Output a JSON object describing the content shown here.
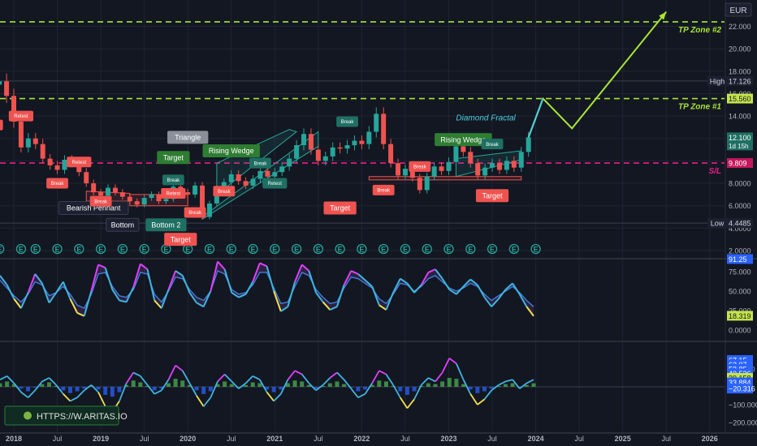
{
  "currency": "EUR",
  "branding": {
    "watermark": "HTTPS://W.ARITAS.IO"
  },
  "colors": {
    "background": "#131722",
    "grid": "#1f2433",
    "axis_text": "#b2b5be",
    "candle_up": "#26a69a",
    "candle_down": "#ef5350",
    "tp_line": "#a8e634",
    "sl_line": "#e91e8c",
    "projection": "#a8e634",
    "fractal": "#4dd0e1",
    "badge_blue": "#2962ff",
    "badge_teal": "#1f6f63",
    "badge_red": "#ef5350",
    "badge_green": "#2e7d32",
    "badge_dark": "#1c2030",
    "badge_yellow": "#c5e34b"
  },
  "chart_data": {
    "type": "candlestick",
    "price_axis": {
      "ticks": [
        2,
        4,
        6,
        8,
        10,
        12,
        14,
        16,
        18,
        20,
        22
      ],
      "tick_labels": [
        "2.0000",
        "4.0000",
        "6.0000",
        "8.0000",
        "10.000",
        "12.000",
        "14.000",
        "16.000",
        "18.000",
        "20.000",
        "22.000"
      ]
    },
    "time_axis": {
      "labels": [
        "2018",
        "Jul",
        "2019",
        "Jul",
        "2020",
        "Jul",
        "2021",
        "Jul",
        "2022",
        "Jul",
        "2023",
        "Jul",
        "2024",
        "Jul",
        "2025",
        "Jul",
        "2026"
      ],
      "bold": [
        true,
        false,
        true,
        false,
        true,
        false,
        true,
        false,
        true,
        false,
        true,
        false,
        true,
        false,
        true,
        false,
        true
      ]
    },
    "price_path": [
      [
        "2017-09",
        14.5
      ],
      [
        "2017-10",
        16.8
      ],
      [
        "2017-11",
        17.1
      ],
      [
        "2017-12",
        15.8
      ],
      [
        "2018-01",
        13.5
      ],
      [
        "2018-02",
        11.2
      ],
      [
        "2018-03",
        12.0
      ],
      [
        "2018-04",
        11.5
      ],
      [
        "2018-05",
        10.2
      ],
      [
        "2018-06",
        9.6
      ],
      [
        "2018-07",
        9.2
      ],
      [
        "2018-08",
        10.1
      ],
      [
        "2018-09",
        9.8
      ],
      [
        "2018-10",
        9.0
      ],
      [
        "2018-11",
        8.0
      ],
      [
        "2018-12",
        7.2
      ],
      [
        "2019-01",
        6.9
      ],
      [
        "2019-02",
        7.6
      ],
      [
        "2019-03",
        7.2
      ],
      [
        "2019-04",
        6.8
      ],
      [
        "2019-05",
        6.4
      ],
      [
        "2019-06",
        6.1
      ],
      [
        "2019-07",
        6.7
      ],
      [
        "2019-08",
        7.0
      ],
      [
        "2019-09",
        6.4
      ],
      [
        "2019-10",
        6.6
      ],
      [
        "2019-11",
        7.7
      ],
      [
        "2019-12",
        7.2
      ],
      [
        "2020-01",
        7.0
      ],
      [
        "2020-02",
        7.8
      ],
      [
        "2020-03",
        5.0
      ],
      [
        "2020-04",
        6.2
      ],
      [
        "2020-05",
        7.4
      ],
      [
        "2020-06",
        8.1
      ],
      [
        "2020-07",
        8.8
      ],
      [
        "2020-08",
        8.2
      ],
      [
        "2020-09",
        7.8
      ],
      [
        "2020-10",
        8.4
      ],
      [
        "2020-11",
        9.1
      ],
      [
        "2020-12",
        8.6
      ],
      [
        "2021-01",
        9.0
      ],
      [
        "2021-02",
        9.5
      ],
      [
        "2021-03",
        10.2
      ],
      [
        "2021-04",
        11.4
      ],
      [
        "2021-05",
        12.4
      ],
      [
        "2021-06",
        11.0
      ],
      [
        "2021-07",
        10.0
      ],
      [
        "2021-08",
        10.4
      ],
      [
        "2021-09",
        11.2
      ],
      [
        "2021-10",
        11.1
      ],
      [
        "2021-11",
        11.4
      ],
      [
        "2021-12",
        11.8
      ],
      [
        "2022-01",
        11.5
      ],
      [
        "2022-02",
        12.6
      ],
      [
        "2022-03",
        14.2
      ],
      [
        "2022-04",
        11.5
      ],
      [
        "2022-05",
        9.8
      ],
      [
        "2022-06",
        8.7
      ],
      [
        "2022-07",
        9.3
      ],
      [
        "2022-08",
        8.5
      ],
      [
        "2022-09",
        7.4
      ],
      [
        "2022-10",
        8.6
      ],
      [
        "2022-11",
        9.5
      ],
      [
        "2022-12",
        9.1
      ],
      [
        "2023-01",
        9.9
      ],
      [
        "2023-02",
        11.3
      ],
      [
        "2023-03",
        10.8
      ],
      [
        "2023-04",
        9.8
      ],
      [
        "2023-05",
        8.7
      ],
      [
        "2023-06",
        9.4
      ],
      [
        "2023-07",
        9.8
      ],
      [
        "2023-08",
        9.2
      ],
      [
        "2023-09",
        10.0
      ],
      [
        "2023-10",
        9.4
      ],
      [
        "2023-11",
        10.8
      ],
      [
        "2023-12",
        12.1
      ]
    ],
    "projection_path": [
      [
        "2023-12",
        12.1
      ],
      [
        "2024-02",
        15.56
      ],
      [
        "2024-06",
        12.9
      ],
      [
        "2025-07",
        23.3
      ]
    ],
    "fractal_path": [
      [
        "2023-12",
        12.1
      ],
      [
        "2024-02",
        15.56
      ]
    ],
    "levels": [
      {
        "name": "TP Zone #2",
        "price": 22.4,
        "style": "dashed-green",
        "label": "TP Zone #2"
      },
      {
        "name": "TP Zone #1",
        "price": 15.56,
        "style": "dashed-green",
        "label": "TP Zone #1"
      },
      {
        "name": "S/L",
        "price": 9.809,
        "style": "dashed-pink",
        "label": "S/L"
      },
      {
        "name": "High",
        "price": 17.126,
        "style": "thin",
        "label": ""
      },
      {
        "name": "Low",
        "price": 4.4485,
        "style": "thin",
        "label": ""
      }
    ],
    "price_tags": [
      {
        "label": "High",
        "value": "17.126",
        "price": 17.126,
        "kind": "dark"
      },
      {
        "label": "",
        "value": "15.560",
        "price": 15.56,
        "kind": "green"
      },
      {
        "label": "",
        "value": "12.100",
        "sub": "1d 15h",
        "price": 12.1,
        "kind": "teal"
      },
      {
        "label": "",
        "value": "9.809",
        "price": 9.809,
        "kind": "pink"
      },
      {
        "label": "Low",
        "value": "4.4485",
        "price": 4.4485,
        "kind": "dark"
      }
    ],
    "pattern_labels": [
      {
        "text": "Triangle",
        "date": "2020-01",
        "price": 12.1,
        "kind": "grey"
      },
      {
        "text": "Rising Wedge",
        "date": "2020-07",
        "price": 10.9,
        "kind": "green"
      },
      {
        "text": "Target",
        "date": "2019-11",
        "price": 10.3,
        "kind": "green"
      },
      {
        "text": "Bearish Pennant",
        "date": "2018-12",
        "price": 5.8,
        "kind": "dark"
      },
      {
        "text": "Bottom",
        "date": "2019-04",
        "price": 4.3,
        "kind": "dark"
      },
      {
        "text": "Bottom 2",
        "date": "2019-10",
        "price": 4.3,
        "kind": "teal"
      },
      {
        "text": "Target",
        "date": "2019-12",
        "price": 3.0,
        "kind": "red"
      },
      {
        "text": "Target",
        "date": "2021-10",
        "price": 5.8,
        "kind": "red"
      },
      {
        "text": "Diamond Fractal",
        "date": "2023-02",
        "price": 13.6,
        "kind": "italic"
      },
      {
        "text": "Rising Wedge",
        "date": "2023-03",
        "price": 11.9,
        "kind": "green"
      },
      {
        "text": "Target",
        "date": "2023-07",
        "price": 6.9,
        "kind": "red"
      }
    ],
    "small_markers": [
      {
        "text": "Break",
        "date": "2017-10",
        "price": 13.2,
        "kind": "red"
      },
      {
        "text": "Retest",
        "date": "2018-02",
        "price": 14.0,
        "kind": "red"
      },
      {
        "text": "Break",
        "date": "2018-07",
        "price": 8.0,
        "kind": "red"
      },
      {
        "text": "Retest",
        "date": "2018-10",
        "price": 9.9,
        "kind": "red"
      },
      {
        "text": "Break",
        "date": "2019-01",
        "price": 6.4,
        "kind": "red"
      },
      {
        "text": "Break",
        "date": "2019-11",
        "price": 8.3,
        "kind": "teal"
      },
      {
        "text": "Retest",
        "date": "2019-11",
        "price": 7.1,
        "kind": "red"
      },
      {
        "text": "Break",
        "date": "2020-02",
        "price": 5.4,
        "kind": "red"
      },
      {
        "text": "Break",
        "date": "2020-06",
        "price": 7.3,
        "kind": "red"
      },
      {
        "text": "Break",
        "date": "2020-11",
        "price": 9.8,
        "kind": "teal"
      },
      {
        "text": "Retest",
        "date": "2021-01",
        "price": 8.0,
        "kind": "teal"
      },
      {
        "text": "Break",
        "date": "2021-11",
        "price": 13.5,
        "kind": "teal"
      },
      {
        "text": "Break",
        "date": "2022-04",
        "price": 7.4,
        "kind": "red"
      },
      {
        "text": "Break",
        "date": "2022-09",
        "price": 9.5,
        "kind": "red"
      },
      {
        "text": "Break",
        "date": "2023-07",
        "price": 11.5,
        "kind": "teal"
      }
    ],
    "event_icons": {
      "letter": "E",
      "dates": [
        "2017-11",
        "2018-02",
        "2018-04",
        "2018-07",
        "2018-10",
        "2019-01",
        "2019-04",
        "2019-07",
        "2019-10",
        "2020-01",
        "2020-04",
        "2020-07",
        "2020-10",
        "2021-01",
        "2021-04",
        "2021-07",
        "2021-10",
        "2022-01",
        "2022-04",
        "2022-07",
        "2022-10",
        "2023-01",
        "2023-04",
        "2023-07",
        "2023-10",
        "2024-01"
      ]
    },
    "oscillator_1": {
      "axis_ticks": [
        0,
        25,
        50,
        75
      ],
      "axis_tick_labels": [
        "0.0000",
        "25.000",
        "50.000",
        "75.000"
      ],
      "tags": [
        {
          "value": "91.25",
          "level": 91.25,
          "kind": "blue"
        },
        {
          "value": "18.319",
          "level": 18.319,
          "kind": "yellow"
        }
      ],
      "values": [
        70,
        58,
        40,
        28,
        48,
        72,
        60,
        35,
        48,
        62,
        40,
        22,
        18,
        50,
        84,
        80,
        52,
        38,
        36,
        55,
        85,
        78,
        38,
        28,
        52,
        76,
        70,
        48,
        35,
        30,
        50,
        88,
        78,
        48,
        42,
        46,
        62,
        86,
        82,
        50,
        24,
        30,
        62,
        84,
        76,
        48,
        36,
        26,
        30,
        58,
        76,
        72,
        64,
        56,
        32,
        26,
        48,
        66,
        60,
        48,
        58,
        74,
        78,
        66,
        52,
        46,
        56,
        65,
        58,
        42,
        30,
        40,
        52,
        60,
        46,
        30,
        18
      ],
      "second_line": [
        64,
        54,
        44,
        36,
        46,
        62,
        58,
        44,
        48,
        56,
        46,
        32,
        28,
        46,
        72,
        74,
        56,
        44,
        42,
        52,
        74,
        72,
        46,
        36,
        50,
        68,
        66,
        52,
        42,
        38,
        50,
        76,
        72,
        52,
        46,
        48,
        58,
        74,
        74,
        54,
        34,
        36,
        56,
        74,
        70,
        52,
        42,
        34,
        36,
        54,
        68,
        66,
        60,
        54,
        40,
        34,
        46,
        60,
        58,
        50,
        56,
        66,
        70,
        62,
        54,
        50,
        54,
        60,
        56,
        46,
        38,
        44,
        50,
        56,
        48,
        38,
        30
      ]
    },
    "oscillator_2": {
      "axis_ticks": [
        -200,
        -100,
        0,
        100
      ],
      "axis_tick_labels": [
        "−200.000",
        "−100.000",
        "0.0000",
        "100.000"
      ],
      "tags": [
        {
          "value": "67.15",
          "level": 150,
          "kind": "blue"
        },
        {
          "value": "62.07",
          "level": 125,
          "kind": "blue"
        },
        {
          "value": "53.85",
          "level": 100,
          "kind": "blue"
        },
        {
          "value": "40.536",
          "level": 75,
          "kind": "blue"
        },
        {
          "value": "39.158",
          "level": 50,
          "kind": "yellow"
        },
        {
          "value": "33.884",
          "level": 25,
          "kind": "blue"
        },
        {
          "value": "−20.316",
          "level": -10,
          "kind": "blue"
        }
      ],
      "line_values": [
        40,
        60,
        20,
        -30,
        -60,
        -20,
        30,
        50,
        10,
        -40,
        -80,
        -60,
        -20,
        10,
        -30,
        -110,
        -140,
        -80,
        20,
        80,
        60,
        10,
        -40,
        -20,
        40,
        120,
        90,
        20,
        -50,
        -110,
        -60,
        30,
        70,
        30,
        -10,
        20,
        60,
        40,
        -30,
        -80,
        -40,
        40,
        90,
        70,
        20,
        -20,
        10,
        50,
        80,
        40,
        -10,
        -60,
        -40,
        20,
        90,
        70,
        10,
        -60,
        -120,
        -70,
        10,
        50,
        30,
        80,
        160,
        130,
        40,
        -40,
        -100,
        -70,
        -20,
        10,
        30,
        40,
        -10,
        20,
        40
      ],
      "histogram": [
        20,
        30,
        15,
        -10,
        -25,
        -5,
        15,
        25,
        5,
        -20,
        -35,
        -25,
        -10,
        5,
        -15,
        -45,
        -55,
        -30,
        10,
        35,
        25,
        5,
        -20,
        -10,
        20,
        45,
        35,
        10,
        -20,
        -40,
        -25,
        15,
        30,
        15,
        -5,
        10,
        25,
        20,
        -15,
        -30,
        -15,
        20,
        35,
        30,
        10,
        -10,
        5,
        20,
        30,
        15,
        -5,
        -25,
        -15,
        10,
        35,
        30,
        5,
        -25,
        -45,
        -25,
        5,
        20,
        15,
        30,
        50,
        45,
        15,
        -15,
        -35,
        -25,
        -10,
        5,
        15,
        20,
        -5,
        10,
        20
      ]
    }
  }
}
